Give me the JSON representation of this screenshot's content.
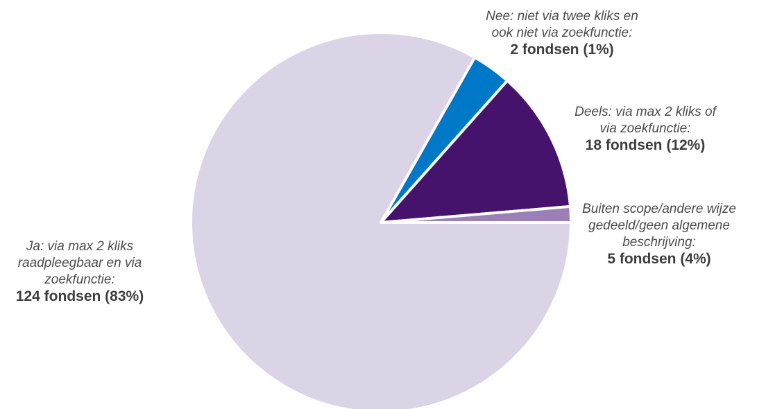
{
  "chart_data": {
    "type": "pie",
    "slices": [
      {
        "description": [
          "Ja: via max 2 kliks",
          "raadpleegbaar en via",
          "zoekfunctie:"
        ],
        "count_label": "124 fondsen (83%)",
        "value": 124,
        "percent": 83,
        "color": "#dbd3e6"
      },
      {
        "description": [
          "Buiten scope/andere wijze",
          "gedeeld/geen algemene",
          "beschrijving:"
        ],
        "count_label": "5 fondsen (4%)",
        "value": 5,
        "percent": 4,
        "color": "#0078c8"
      },
      {
        "description": [
          "Deels: via max 2 kliks of",
          "via zoekfunctie:"
        ],
        "count_label": "18 fondsen (12%)",
        "value": 18,
        "percent": 12,
        "color": "#45136b"
      },
      {
        "description": [
          "Nee: niet via twee kliks en",
          "ook niet via zoekfunctie:"
        ],
        "count_label": "2 fondsen (1%)",
        "value": 2,
        "percent": 1,
        "color": "#9b80b5"
      }
    ]
  }
}
